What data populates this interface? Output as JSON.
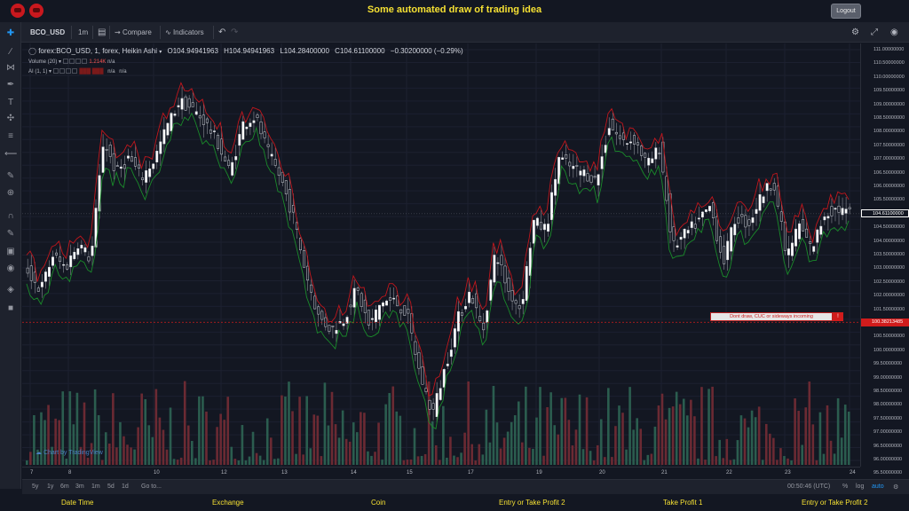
{
  "header": {
    "title": "Some automated draw of trading idea",
    "logout_label": "Logout"
  },
  "toolbar": {
    "symbol": "BCO_USD",
    "interval": "1m",
    "compare_label": "Compare",
    "indicators_label": "Indicators"
  },
  "legend": {
    "main_title": "forex:BCO_USD, 1, forex, Heikin Ashi",
    "open": "O104.94941963",
    "high": "H104.94941963",
    "low": "L104.28400000",
    "close": "C104.61100000",
    "change": "−0.30200000 (−0.29%)",
    "volume_label": "Volume (20)",
    "volume_value": "1.214K",
    "volume_na": "n/a",
    "ai_label": "AI (1, 1)",
    "ai_na1": "n/a",
    "ai_na2": "n/a"
  },
  "price_axis": {
    "labels": [
      "111.00000000",
      "110.50000000",
      "110.00000000",
      "109.50000000",
      "109.00000000",
      "108.50000000",
      "108.00000000",
      "107.50000000",
      "107.00000000",
      "106.50000000",
      "106.00000000",
      "105.50000000",
      "105.00000000",
      "104.50000000",
      "104.00000000",
      "103.50000000",
      "103.00000000",
      "102.50000000",
      "102.00000000",
      "101.50000000",
      "101.00000000",
      "100.50000000",
      "100.00000000",
      "99.50000000",
      "99.00000000",
      "98.50000000",
      "98.00000000",
      "97.50000000",
      "97.00000000",
      "96.50000000",
      "96.00000000",
      "95.50000000",
      "95.00000000"
    ],
    "current_price": "104.61100000",
    "line_price": "100.38213485"
  },
  "time_axis": {
    "labels": [
      "7",
      "8",
      "10",
      "12",
      "13",
      "14",
      "15",
      "17",
      "19",
      "20",
      "21",
      "22",
      "23",
      "24",
      "26"
    ]
  },
  "annotation": {
    "text": "Dont draw, CUC or sideways incoming",
    "marker": "!"
  },
  "watermark": "Chart by TradingView",
  "bottom_bar": {
    "ranges": [
      "5y",
      "1y",
      "6m",
      "3m",
      "1m",
      "5d",
      "1d"
    ],
    "goto": "Go to...",
    "clock": "00:50:46 (UTC)",
    "percent": "%",
    "log": "log",
    "auto": "auto"
  },
  "footer": {
    "columns": [
      "Date Time",
      "Exchange",
      "Coin",
      "Entry or Take Profit 2",
      "Take Profit 1",
      "Entry or Take Profit 2"
    ]
  },
  "colors": {
    "up": "#26a69a",
    "down": "#ef5350",
    "accent": "#f5e033",
    "line_red": "#c0161c",
    "line_green": "#1a8a2a"
  },
  "chart_data": {
    "type": "candlestick",
    "title": "forex:BCO_USD, 1, forex, Heikin Ashi",
    "ylim": [
      95,
      111
    ],
    "x_ticks": [
      "7",
      "8",
      "10",
      "12",
      "13",
      "14",
      "15",
      "17",
      "19",
      "20",
      "21",
      "22",
      "23",
      "24",
      "26"
    ],
    "close_path": [
      102.4,
      101.6,
      103,
      102.5,
      103.5,
      102.8,
      107.5,
      106.2,
      106.8,
      106,
      106.7,
      108,
      109,
      108.7,
      108.2,
      107.4,
      106.2,
      108.1,
      108.4,
      107,
      106,
      104.5,
      102.3,
      100.6,
      100.1,
      100.5,
      101.7,
      100.2,
      101.2,
      101.2,
      100.7,
      98.4,
      96.8,
      98.6,
      100.5,
      101.6,
      100,
      103.2,
      101.6,
      100.9,
      104.3,
      104,
      106.8,
      106.4,
      106.2,
      105.9,
      108.1,
      107.4,
      107.5,
      106.5,
      107.2,
      103.3,
      103.8,
      104.3,
      104.9,
      102.7,
      104.5,
      104.2,
      105.3,
      105.9,
      102.9,
      104.2,
      103.2,
      104.6,
      104.8,
      104.6
    ],
    "volume_count": 230
  }
}
